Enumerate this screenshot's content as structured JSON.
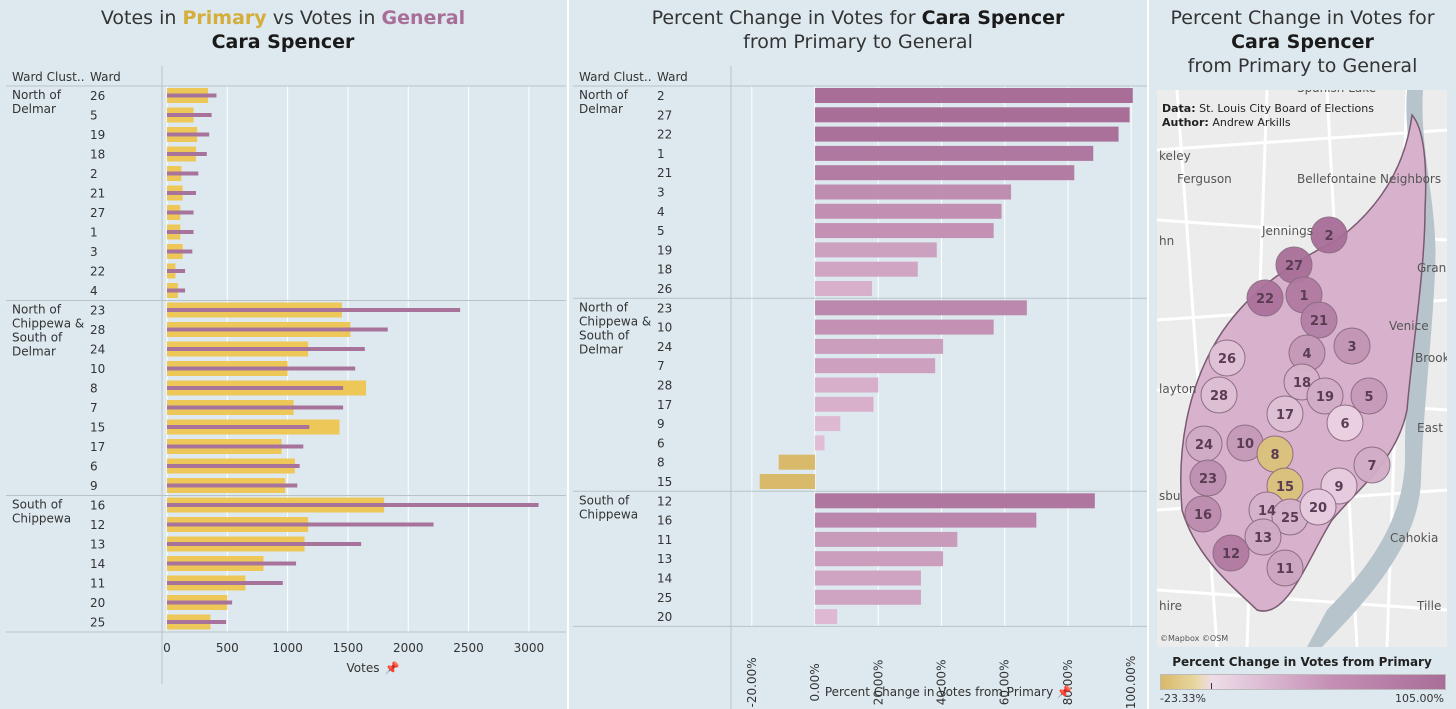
{
  "left": {
    "title_part1": "Votes in ",
    "title_primary": "Primary",
    "title_vs": " vs Votes in ",
    "title_general": "General",
    "title_line2": "Cara Spencer",
    "col_cluster": "Ward Clust..",
    "col_ward": "Ward",
    "axis_label": "Votes",
    "pin_icon": "pin-icon"
  },
  "middle": {
    "title_part1": "Percent Change in Votes for ",
    "title_bold": "Cara Spencer",
    "title_line2": "from Primary to General",
    "col_cluster": "Ward Clust..",
    "col_ward": "Ward",
    "axis_label": "Percent Change in Votes from Primary",
    "pin_icon": "pin-icon"
  },
  "right": {
    "title_line1": "Percent Change in Votes for",
    "title_line2": "Cara Spencer",
    "title_line3": "from Primary to General",
    "data_label": "Data:",
    "data_value": "St. Louis City Board of Elections",
    "author_label": "Author:",
    "author_value": "Andrew Arkills",
    "osm_credit": "©Mapbox ©OSM",
    "legend_title": "Percent Change in Votes from Primary",
    "legend_min": "-23.33%",
    "legend_max": "105.00%",
    "place_labels": [
      "Ferguson",
      "Bellefontaine Neighbors",
      "Jennings",
      "Venice",
      "Brookly",
      "Gran",
      "East S",
      "Cahokia",
      "Tille",
      "hire",
      "sbu",
      "layton",
      "hn",
      "keley",
      "Spanish Lake"
    ]
  },
  "colors": {
    "primary": "#edc858",
    "general": "#a8739b",
    "background": "#dde9ef",
    "negative": "#d9b96a",
    "positive_low": "#e3bfd7",
    "positive_high": "#a86e98"
  },
  "chart_data": [
    {
      "type": "bar",
      "orientation": "horizontal",
      "title": "Votes in Primary vs Votes in General Cara Spencer",
      "xlabel": "Votes",
      "xlim": [
        0,
        3200
      ],
      "xticks": [
        0,
        500,
        1000,
        1500,
        2000,
        2500,
        3000
      ],
      "groups": [
        {
          "cluster": "North of Delmar",
          "wards": [
            "26",
            "5",
            "19",
            "18",
            "2",
            "21",
            "27",
            "1",
            "3",
            "22",
            "4"
          ],
          "primary": [
            340,
            220,
            250,
            240,
            120,
            130,
            110,
            110,
            130,
            70,
            90
          ],
          "general": [
            410,
            370,
            350,
            330,
            260,
            240,
            220,
            220,
            210,
            150,
            150
          ]
        },
        {
          "cluster": "North of Chippewa & South of Delmar",
          "wards": [
            "23",
            "28",
            "24",
            "10",
            "8",
            "7",
            "15",
            "17",
            "6",
            "9"
          ],
          "primary": [
            1450,
            1520,
            1170,
            1000,
            1650,
            1050,
            1430,
            950,
            1060,
            980
          ],
          "general": [
            2430,
            1830,
            1640,
            1560,
            1460,
            1460,
            1180,
            1130,
            1100,
            1080
          ]
        },
        {
          "cluster": "South of Chippewa",
          "wards": [
            "16",
            "12",
            "13",
            "14",
            "11",
            "20",
            "25"
          ],
          "primary": [
            1800,
            1170,
            1140,
            800,
            650,
            500,
            360
          ],
          "general": [
            3080,
            2210,
            1610,
            1070,
            960,
            540,
            490
          ]
        }
      ],
      "series_names": [
        "Primary",
        "General"
      ]
    },
    {
      "type": "bar",
      "orientation": "horizontal",
      "title": "Percent Change in Votes for Cara Spencer from Primary to General",
      "xlabel": "Percent Change in Votes from Primary",
      "xlim": [
        -25,
        105
      ],
      "xticks": [
        "-20.00%",
        "0.00%",
        "20.00%",
        "40.00%",
        "60.00%",
        "80.00%",
        "100.00%"
      ],
      "xtick_values": [
        -20,
        0,
        20,
        40,
        60,
        80,
        100
      ],
      "groups": [
        {
          "cluster": "North of Delmar",
          "wards": [
            "2",
            "27",
            "22",
            "1",
            "21",
            "3",
            "4",
            "5",
            "19",
            "18",
            "26"
          ],
          "values": [
            100.5,
            99.5,
            96,
            88,
            82,
            62,
            59,
            56.5,
            38.5,
            32.5,
            18
          ]
        },
        {
          "cluster": "North of Chippewa & South of Delmar",
          "wards": [
            "23",
            "10",
            "24",
            "7",
            "28",
            "17",
            "9",
            "6",
            "8",
            "15"
          ],
          "values": [
            67,
            56.5,
            40.5,
            38,
            20,
            18.5,
            8,
            3,
            -11.5,
            -17.5
          ]
        },
        {
          "cluster": "South of Chippewa",
          "wards": [
            "12",
            "16",
            "11",
            "13",
            "14",
            "25",
            "20"
          ],
          "values": [
            88.5,
            70,
            45,
            40.5,
            33.5,
            33.5,
            7
          ]
        }
      ]
    }
  ],
  "map_wards": [
    {
      "ward": "2",
      "pct": 100.5
    },
    {
      "ward": "27",
      "pct": 99.5
    },
    {
      "ward": "22",
      "pct": 96
    },
    {
      "ward": "1",
      "pct": 88
    },
    {
      "ward": "21",
      "pct": 82
    },
    {
      "ward": "4",
      "pct": 59
    },
    {
      "ward": "3",
      "pct": 62
    },
    {
      "ward": "26",
      "pct": 18
    },
    {
      "ward": "18",
      "pct": 32.5
    },
    {
      "ward": "28",
      "pct": 20
    },
    {
      "ward": "19",
      "pct": 38.5
    },
    {
      "ward": "5",
      "pct": 56.5
    },
    {
      "ward": "17",
      "pct": 18.5
    },
    {
      "ward": "6",
      "pct": 3
    },
    {
      "ward": "24",
      "pct": 40.5
    },
    {
      "ward": "10",
      "pct": 56.5
    },
    {
      "ward": "8",
      "pct": -11.5
    },
    {
      "ward": "7",
      "pct": 38
    },
    {
      "ward": "23",
      "pct": 67
    },
    {
      "ward": "15",
      "pct": -17.5
    },
    {
      "ward": "9",
      "pct": 8
    },
    {
      "ward": "16",
      "pct": 70
    },
    {
      "ward": "14",
      "pct": 33.5
    },
    {
      "ward": "25",
      "pct": 33.5
    },
    {
      "ward": "20",
      "pct": 7
    },
    {
      "ward": "13",
      "pct": 40.5
    },
    {
      "ward": "12",
      "pct": 88.5
    },
    {
      "ward": "11",
      "pct": 45
    }
  ]
}
